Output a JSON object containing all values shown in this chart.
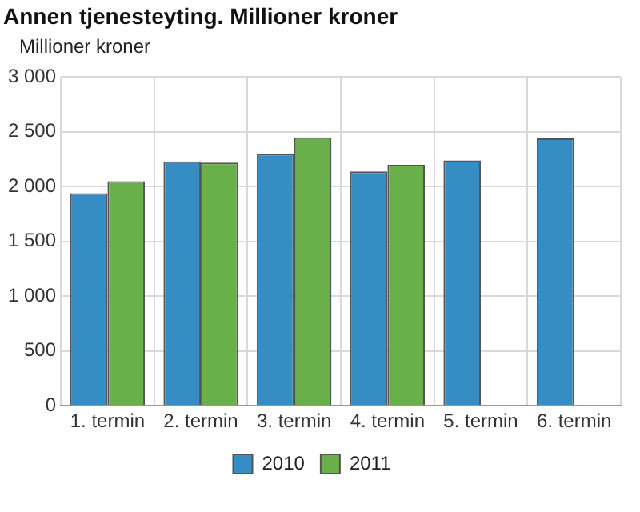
{
  "chart_data": {
    "type": "bar",
    "title": "Annen tjenesteyting. Millioner kroner",
    "ylabel": "Millioner kroner",
    "categories": [
      "1. termin",
      "2. termin",
      "3. termin",
      "4. termin",
      "5. termin",
      "6. termin"
    ],
    "series": [
      {
        "name": "2010",
        "color": "#368dc4",
        "values": [
          1940,
          2230,
          2300,
          2140,
          2240,
          2440
        ]
      },
      {
        "name": "2011",
        "color": "#6ab04a",
        "values": [
          2050,
          2220,
          2450,
          2200,
          null,
          null
        ]
      }
    ],
    "ylim": [
      0,
      3000
    ],
    "yticks": [
      0,
      {
        "value": 500,
        "label": "500"
      },
      {
        "value": 1000,
        "label": "1 000"
      },
      {
        "value": 1500,
        "label": "1 500"
      },
      {
        "value": 2000,
        "label": "2 000"
      },
      {
        "value": 2500,
        "label": "2 500"
      },
      {
        "value": 3000,
        "label": "3 000"
      }
    ],
    "grid": true,
    "legend": "bottom"
  }
}
